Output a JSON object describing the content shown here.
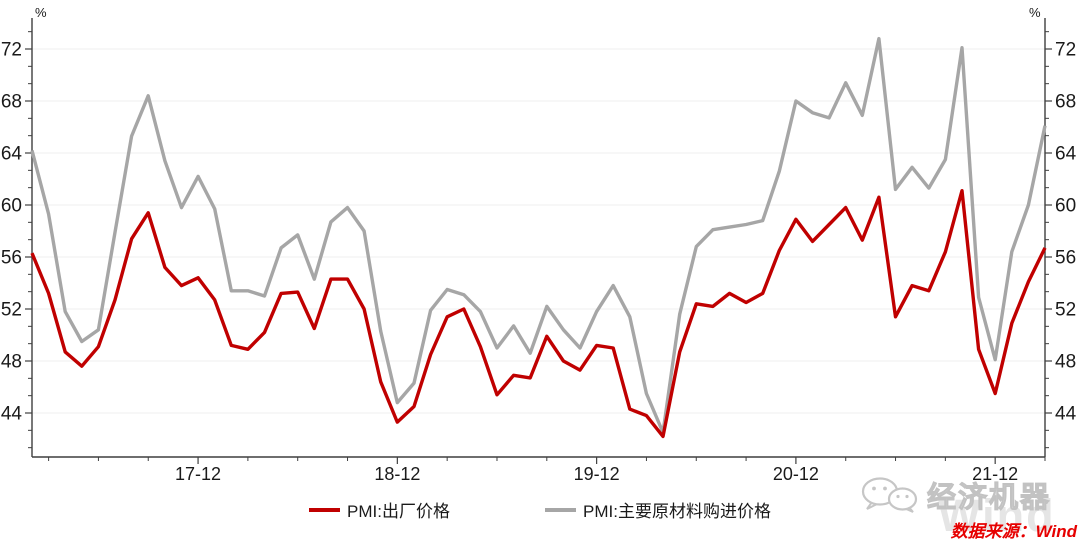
{
  "chart_data": {
    "type": "line",
    "title": "",
    "unit_label": "%",
    "grid": "horizontal-only",
    "legend_position": "bottom-center",
    "y_ticks": [
      44,
      48,
      52,
      56,
      60,
      64,
      68,
      72
    ],
    "ylim": [
      40.6,
      74.2
    ],
    "x_tick_labels": [
      "17-12",
      "18-12",
      "19-12",
      "20-12",
      "21-12"
    ],
    "x_tick_indices": [
      10,
      22,
      34,
      46,
      58
    ],
    "x": [
      "2017-02",
      "2017-03",
      "2017-04",
      "2017-05",
      "2017-06",
      "2017-07",
      "2017-08",
      "2017-09",
      "2017-10",
      "2017-11",
      "2017-12",
      "2018-01",
      "2018-02",
      "2018-03",
      "2018-04",
      "2018-05",
      "2018-06",
      "2018-07",
      "2018-08",
      "2018-09",
      "2018-10",
      "2018-11",
      "2018-12",
      "2019-01",
      "2019-02",
      "2019-03",
      "2019-04",
      "2019-05",
      "2019-06",
      "2019-07",
      "2019-08",
      "2019-09",
      "2019-10",
      "2019-11",
      "2019-12",
      "2020-01",
      "2020-02",
      "2020-03",
      "2020-04",
      "2020-05",
      "2020-06",
      "2020-07",
      "2020-08",
      "2020-09",
      "2020-10",
      "2020-11",
      "2020-12",
      "2021-01",
      "2021-02",
      "2021-03",
      "2021-04",
      "2021-05",
      "2021-06",
      "2021-07",
      "2021-08",
      "2021-09",
      "2021-10",
      "2021-11",
      "2021-12",
      "2022-01",
      "2022-02",
      "2022-03"
    ],
    "series": [
      {
        "name": "PMI:出厂价格",
        "color": "#c00000",
        "values": [
          56.3,
          53.2,
          48.7,
          47.6,
          49.1,
          52.7,
          57.4,
          59.4,
          55.2,
          53.8,
          54.4,
          52.7,
          49.2,
          48.9,
          50.2,
          53.2,
          53.3,
          50.5,
          54.3,
          54.3,
          52.0,
          46.4,
          43.3,
          44.5,
          48.5,
          51.4,
          52.0,
          49.1,
          45.4,
          46.9,
          46.7,
          49.9,
          48.0,
          47.3,
          49.2,
          49.0,
          44.3,
          43.8,
          42.2,
          48.7,
          52.4,
          52.2,
          53.2,
          52.5,
          53.2,
          56.5,
          58.9,
          57.2,
          58.5,
          59.8,
          57.3,
          60.6,
          51.4,
          53.8,
          53.4,
          56.4,
          61.1,
          48.9,
          45.5,
          50.9,
          54.1,
          56.7
        ]
      },
      {
        "name": "PMI:主要原材料购进价格",
        "color": "#a6a6a6",
        "values": [
          64.2,
          59.3,
          51.8,
          49.5,
          50.4,
          57.9,
          65.3,
          68.4,
          63.4,
          59.8,
          62.2,
          59.7,
          53.4,
          53.4,
          53.0,
          56.7,
          57.7,
          54.3,
          58.7,
          59.8,
          58.0,
          50.3,
          44.8,
          46.3,
          51.9,
          53.5,
          53.1,
          51.8,
          49.0,
          50.7,
          48.6,
          52.2,
          50.4,
          49.0,
          51.8,
          53.8,
          51.4,
          45.5,
          42.5,
          51.6,
          56.8,
          58.1,
          58.3,
          58.5,
          58.8,
          62.6,
          68.0,
          67.1,
          66.7,
          69.4,
          66.9,
          72.8,
          61.2,
          62.9,
          61.3,
          63.5,
          72.1,
          52.9,
          48.1,
          56.4,
          60.0,
          66.1
        ]
      }
    ],
    "colors": {
      "axis": "#3f3f3f",
      "tick_label": "#1a1a1a",
      "gridline": "#efefef"
    }
  },
  "watermark": {
    "brand": "经济机器",
    "wind_text": "Wind",
    "icon": "wechat-icon"
  },
  "source": {
    "label": "数据来源：Wind"
  }
}
